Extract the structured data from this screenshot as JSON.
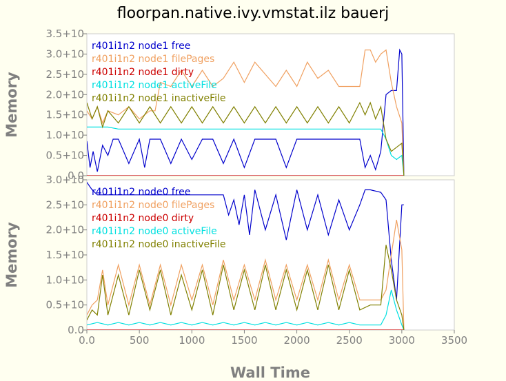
{
  "title": "floorpan.native.ivy.vmstat.ilz bauerj",
  "chart_data": [
    {
      "type": "line",
      "ylabel": "Memory",
      "xlim": [
        0,
        3500
      ],
      "ylim": [
        0,
        3.5
      ],
      "ytick_labels": [
        "0.0",
        "0.5+10",
        "1.0+10",
        "1.5+10",
        "2.0+10",
        "2.5+10",
        "3.0+10",
        "3.5+10"
      ],
      "ytick_values": [
        0,
        0.5,
        1.0,
        1.5,
        2.0,
        2.5,
        3.0,
        3.5
      ],
      "legend_placement": "top-left",
      "series": [
        {
          "name": "r401i1n2 node1 free",
          "color": "#0000cc",
          "x": [
            0,
            30,
            60,
            100,
            150,
            200,
            250,
            300,
            400,
            500,
            550,
            600,
            700,
            800,
            900,
            1000,
            1100,
            1200,
            1300,
            1400,
            1500,
            1600,
            1700,
            1800,
            1900,
            2000,
            2100,
            2200,
            2300,
            2400,
            2500,
            2600,
            2650,
            2700,
            2750,
            2800,
            2850,
            2900,
            2950,
            2980,
            3000,
            3020
          ],
          "y": [
            0.85,
            0.2,
            0.6,
            0.1,
            0.75,
            0.5,
            0.9,
            0.9,
            0.3,
            0.9,
            0.2,
            0.9,
            0.9,
            0.3,
            0.9,
            0.4,
            0.9,
            0.9,
            0.3,
            0.9,
            0.2,
            0.9,
            0.9,
            0.9,
            0.2,
            0.9,
            0.9,
            0.9,
            0.9,
            0.9,
            0.9,
            0.9,
            0.2,
            0.5,
            0.15,
            0.6,
            2.0,
            2.1,
            2.1,
            3.1,
            3.0,
            0.0
          ]
        },
        {
          "name": "r401i1n2 node1 filePages",
          "color": "#f0a060",
          "x": [
            0,
            50,
            100,
            150,
            200,
            300,
            400,
            500,
            600,
            650,
            700,
            800,
            900,
            1000,
            1100,
            1200,
            1300,
            1400,
            1500,
            1600,
            1700,
            1800,
            1900,
            2000,
            2100,
            2200,
            2300,
            2400,
            2500,
            2600,
            2650,
            2700,
            2750,
            2800,
            2850,
            2900,
            2950,
            3000,
            3020
          ],
          "y": [
            1.6,
            1.4,
            1.7,
            1.3,
            1.6,
            1.5,
            1.7,
            1.4,
            1.6,
            1.6,
            2.3,
            2.2,
            2.6,
            2.2,
            2.6,
            2.2,
            2.4,
            2.8,
            2.3,
            2.8,
            2.5,
            2.2,
            2.6,
            2.2,
            2.8,
            2.4,
            2.6,
            2.2,
            2.2,
            2.2,
            3.1,
            3.1,
            2.8,
            3.0,
            3.1,
            2.3,
            1.7,
            1.3,
            0.0
          ]
        },
        {
          "name": "r401i1n2 node1 dirty",
          "color": "#cc0000",
          "x": [
            0,
            3020
          ],
          "y": [
            0.0,
            0.0
          ]
        },
        {
          "name": "r401i1n2 node1 activeFile",
          "color": "#00e0e0",
          "x": [
            0,
            100,
            200,
            300,
            400,
            500,
            600,
            700,
            800,
            900,
            1000,
            1100,
            1200,
            1300,
            1400,
            1500,
            1600,
            1700,
            1800,
            1900,
            2000,
            2100,
            2200,
            2300,
            2400,
            2500,
            2600,
            2700,
            2800,
            2850,
            2900,
            2950,
            3000,
            3020
          ],
          "y": [
            1.2,
            1.2,
            1.2,
            1.15,
            1.15,
            1.15,
            1.15,
            1.15,
            1.15,
            1.15,
            1.15,
            1.15,
            1.15,
            1.15,
            1.15,
            1.15,
            1.15,
            1.15,
            1.15,
            1.15,
            1.15,
            1.15,
            1.15,
            1.15,
            1.15,
            1.15,
            1.15,
            1.15,
            1.15,
            0.9,
            0.5,
            0.4,
            0.5,
            0.0
          ]
        },
        {
          "name": "r401i1n2 node1 inactiveFile",
          "color": "#808000",
          "x": [
            0,
            50,
            100,
            150,
            200,
            300,
            400,
            500,
            600,
            700,
            800,
            900,
            1000,
            1100,
            1200,
            1300,
            1400,
            1500,
            1600,
            1700,
            1800,
            1900,
            2000,
            2100,
            2200,
            2300,
            2400,
            2500,
            2600,
            2650,
            2700,
            2750,
            2800,
            2850,
            2900,
            2950,
            3000,
            3020
          ],
          "y": [
            1.8,
            1.4,
            1.7,
            1.2,
            1.6,
            1.3,
            1.7,
            1.3,
            1.7,
            1.3,
            1.7,
            1.3,
            1.7,
            1.3,
            1.7,
            1.3,
            1.7,
            1.3,
            1.7,
            1.3,
            1.7,
            1.3,
            1.7,
            1.3,
            1.7,
            1.3,
            1.7,
            1.3,
            1.8,
            1.5,
            1.8,
            1.4,
            1.7,
            0.9,
            0.6,
            0.7,
            0.8,
            0.0
          ]
        }
      ]
    },
    {
      "type": "line",
      "ylabel": "Memory",
      "xlabel": "Wall Time",
      "xlim": [
        0,
        3500
      ],
      "ylim": [
        0,
        3.0
      ],
      "xtick_labels": [
        "0.0",
        "500",
        "1000",
        "1500",
        "2000",
        "2500",
        "3000",
        "3500"
      ],
      "xtick_values": [
        0,
        500,
        1000,
        1500,
        2000,
        2500,
        3000,
        3500
      ],
      "ytick_labels": [
        "0.0",
        "0.5+10",
        "1.0+10",
        "1.5+10",
        "2.0+10",
        "2.5+10",
        "3.0+10"
      ],
      "ytick_values": [
        0,
        0.5,
        1.0,
        1.5,
        2.0,
        2.5,
        3.0
      ],
      "legend_placement": "top-left",
      "series": [
        {
          "name": "r401i1n2 node0 free",
          "color": "#0000cc",
          "x": [
            0,
            50,
            100,
            200,
            300,
            400,
            500,
            600,
            700,
            800,
            900,
            1000,
            1100,
            1200,
            1300,
            1350,
            1400,
            1450,
            1500,
            1550,
            1600,
            1700,
            1800,
            1900,
            2000,
            2100,
            2200,
            2300,
            2400,
            2500,
            2600,
            2650,
            2700,
            2800,
            2850,
            2900,
            2950,
            3000,
            3020
          ],
          "y": [
            2.95,
            2.8,
            2.7,
            2.7,
            2.7,
            2.7,
            2.7,
            2.7,
            2.7,
            2.7,
            2.7,
            2.7,
            2.7,
            2.7,
            2.7,
            2.3,
            2.6,
            2.1,
            2.7,
            1.9,
            2.8,
            2.0,
            2.7,
            1.8,
            2.8,
            2.0,
            2.7,
            1.9,
            2.6,
            2.0,
            2.5,
            2.8,
            2.8,
            2.75,
            2.6,
            1.4,
            0.6,
            2.5,
            2.5
          ]
        },
        {
          "name": "r401i1n2 node0 filePages",
          "color": "#f0a060",
          "x": [
            0,
            50,
            100,
            150,
            200,
            300,
            400,
            500,
            600,
            700,
            800,
            900,
            1000,
            1100,
            1200,
            1300,
            1400,
            1500,
            1600,
            1700,
            1800,
            1900,
            2000,
            2100,
            2200,
            2300,
            2400,
            2500,
            2600,
            2700,
            2800,
            2850,
            2900,
            2950,
            3000,
            3020
          ],
          "y": [
            0.3,
            0.5,
            0.6,
            1.2,
            0.5,
            1.3,
            0.5,
            1.3,
            0.5,
            1.3,
            0.5,
            1.3,
            0.6,
            1.3,
            0.5,
            1.4,
            0.6,
            1.3,
            0.6,
            1.4,
            0.6,
            1.3,
            0.6,
            1.3,
            0.6,
            1.4,
            0.6,
            1.3,
            0.6,
            0.6,
            0.6,
            0.8,
            1.5,
            2.2,
            1.6,
            0.0
          ]
        },
        {
          "name": "r401i1n2 node0 dirty",
          "color": "#cc0000",
          "x": [
            0,
            3020
          ],
          "y": [
            0.0,
            0.0
          ]
        },
        {
          "name": "r401i1n2 node0 activeFile",
          "color": "#00e0e0",
          "x": [
            0,
            100,
            200,
            300,
            400,
            500,
            600,
            700,
            800,
            900,
            1000,
            1100,
            1200,
            1300,
            1400,
            1500,
            1600,
            1700,
            1800,
            1900,
            2000,
            2100,
            2200,
            2300,
            2400,
            2500,
            2600,
            2700,
            2800,
            2850,
            2900,
            2950,
            3000,
            3020
          ],
          "y": [
            0.1,
            0.15,
            0.1,
            0.15,
            0.1,
            0.15,
            0.1,
            0.15,
            0.1,
            0.15,
            0.1,
            0.15,
            0.1,
            0.15,
            0.1,
            0.15,
            0.1,
            0.15,
            0.1,
            0.15,
            0.1,
            0.15,
            0.1,
            0.15,
            0.1,
            0.15,
            0.1,
            0.1,
            0.1,
            0.3,
            0.8,
            0.4,
            0.1,
            0.0
          ]
        },
        {
          "name": "r401i1n2 node0 inactiveFile",
          "color": "#808000",
          "x": [
            0,
            50,
            100,
            150,
            200,
            300,
            400,
            500,
            600,
            700,
            800,
            900,
            1000,
            1100,
            1200,
            1300,
            1400,
            1500,
            1600,
            1700,
            1800,
            1900,
            2000,
            2100,
            2200,
            2300,
            2400,
            2500,
            2600,
            2700,
            2800,
            2850,
            2900,
            2950,
            3000,
            3020
          ],
          "y": [
            0.2,
            0.4,
            0.3,
            1.1,
            0.3,
            1.1,
            0.3,
            1.2,
            0.4,
            1.2,
            0.3,
            1.1,
            0.4,
            1.2,
            0.3,
            1.3,
            0.4,
            1.2,
            0.4,
            1.3,
            0.4,
            1.2,
            0.4,
            1.2,
            0.4,
            1.3,
            0.4,
            1.2,
            0.4,
            0.5,
            0.5,
            1.7,
            1.2,
            0.6,
            0.3,
            0.0
          ]
        }
      ]
    }
  ]
}
